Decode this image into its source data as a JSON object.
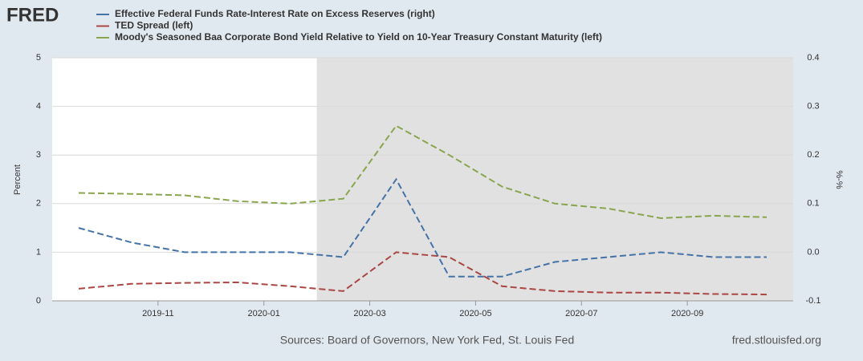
{
  "logo": "FRED",
  "chart_data": {
    "type": "line",
    "x": [
      "2019-09",
      "2019-10",
      "2019-11",
      "2019-12",
      "2020-01",
      "2020-02",
      "2020-03",
      "2020-04",
      "2020-05",
      "2020-06",
      "2020-07",
      "2020-08",
      "2020-09",
      "2020-10"
    ],
    "series": [
      {
        "name": "Effective Federal Funds Rate-Interest Rate on Excess Reserves (right)",
        "color": "#4572a7",
        "axis": "y2",
        "values": [
          0.05,
          0.02,
          0.0,
          0.0,
          0.0,
          -0.01,
          0.15,
          -0.05,
          -0.05,
          -0.02,
          -0.01,
          0.0,
          -0.01,
          -0.01
        ]
      },
      {
        "name": "TED Spread (left)",
        "color": "#aa4643",
        "values": [
          0.25,
          0.35,
          0.37,
          0.38,
          0.3,
          0.2,
          1.0,
          0.9,
          0.3,
          0.2,
          0.17,
          0.17,
          0.14,
          0.13
        ]
      },
      {
        "name": "Moody's Seasoned Baa Corporate Bond Yield Relative to Yield on 10-Year Treasury Constant Maturity (left)",
        "color": "#89a54e",
        "values": [
          2.22,
          2.2,
          2.17,
          2.05,
          2.0,
          2.1,
          3.6,
          3.0,
          2.35,
          2.0,
          1.9,
          1.7,
          1.75,
          1.72
        ]
      }
    ],
    "xlim": [
      "2019-09",
      "2020-11"
    ],
    "xticks": [
      "2019-11",
      "2020-01",
      "2020-03",
      "2020-05",
      "2020-07",
      "2020-09"
    ],
    "ylim": [
      0,
      5
    ],
    "yticks": [
      0,
      1,
      2,
      3,
      4,
      5
    ],
    "y2lim": [
      -0.1,
      0.4
    ],
    "y2ticks": [
      -0.1,
      {
        "value": 0,
        "label": "0.0"
      },
      0.1,
      0.2,
      0.3,
      0.4
    ],
    "ylabel": "Percent",
    "y2label": "%-%",
    "shading_from": "2020-02",
    "grid": true,
    "source": "Sources: Board of Governors, New York Fed, St. Louis Fed",
    "site": "fred.stlouisfed.org"
  }
}
